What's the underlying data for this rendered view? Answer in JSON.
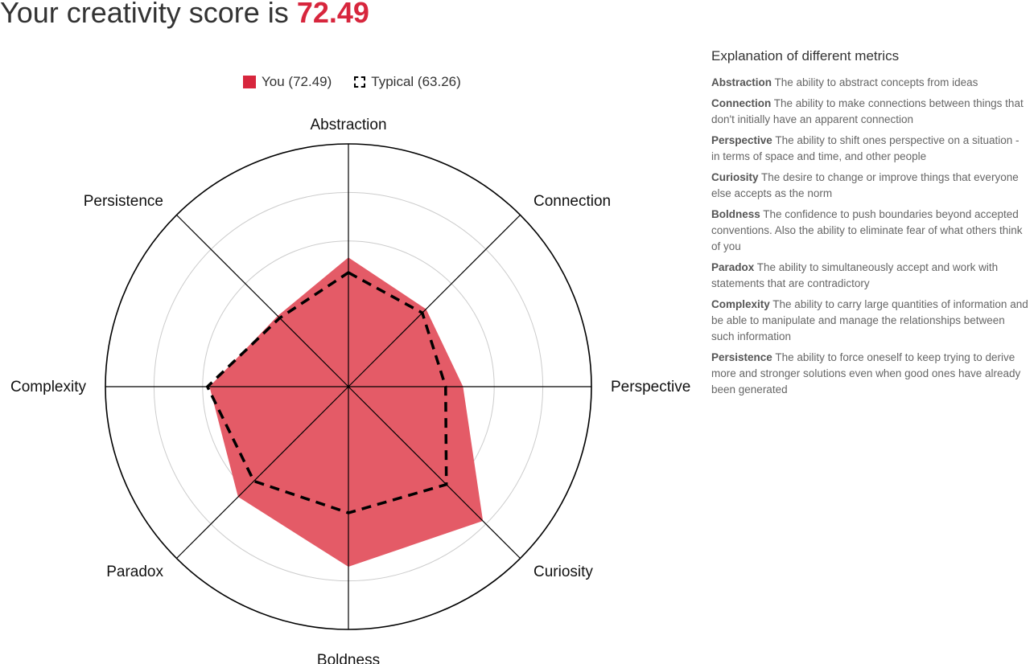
{
  "heading": {
    "prefix": "Your creativity score is",
    "score": "72.49"
  },
  "legend": {
    "you": "You (72.49)",
    "typical": "Typical (63.26)"
  },
  "colors": {
    "you": "#d7263d",
    "you_fill": "#e45b67",
    "typical": "#000000",
    "grid": "#cccccc",
    "axis": "#000000"
  },
  "chart_data": {
    "type": "radar",
    "axes": [
      "Abstraction",
      "Connection",
      "Perspective",
      "Curiosity",
      "Boldness",
      "Paradox",
      "Complexity",
      "Persistence"
    ],
    "range": [
      0,
      100
    ],
    "gridlines": [
      20,
      40,
      60,
      80,
      100
    ],
    "series": [
      {
        "name": "You (72.49)",
        "style": "filled",
        "values": [
          53,
          45,
          47,
          78,
          74,
          64,
          57,
          41
        ]
      },
      {
        "name": "Typical (63.26)",
        "style": "dashed",
        "values": [
          47,
          43,
          40,
          57,
          52,
          55,
          58,
          40
        ]
      }
    ]
  },
  "explanation": {
    "title": "Explanation of different metrics",
    "metrics": [
      {
        "name": "Abstraction",
        "desc": "The ability to abstract concepts from ideas"
      },
      {
        "name": "Connection",
        "desc": "The ability to make connections between things that don't initially have an apparent connection"
      },
      {
        "name": "Perspective",
        "desc": "The ability to shift ones perspective on a situation - in terms of space and time, and other people"
      },
      {
        "name": "Curiosity",
        "desc": "The desire to change or improve things that everyone else accepts as the norm"
      },
      {
        "name": "Boldness",
        "desc": "The confidence to push boundaries beyond accepted conventions. Also the ability to eliminate fear of what others think of you"
      },
      {
        "name": "Paradox",
        "desc": "The ability to simultaneously accept and work with statements that are contradictory"
      },
      {
        "name": "Complexity",
        "desc": "The ability to carry large quantities of information and be able to manipulate and manage the relationships between such information"
      },
      {
        "name": "Persistence",
        "desc": "The ability to force oneself to keep trying to derive more and stronger solutions even when good ones have already been generated"
      }
    ]
  }
}
